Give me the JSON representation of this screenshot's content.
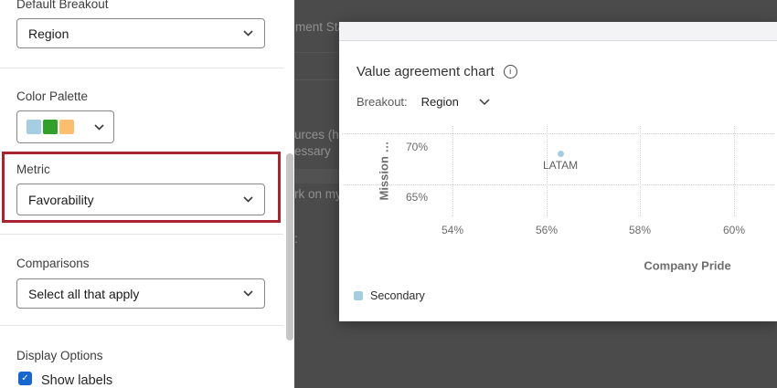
{
  "sidebar": {
    "default_breakout_label": "Default Breakout",
    "default_breakout_value": "Region",
    "color_palette_label": "Color Palette",
    "palette_colors": [
      "#a6cee3",
      "#33a02c",
      "#fdbf6f"
    ],
    "metric_label": "Metric",
    "metric_value": "Favorability",
    "metric_highlight_color": "#a92431",
    "comparisons_label": "Comparisons",
    "comparisons_value": "Select all that apply",
    "display_options_label": "Display Options",
    "show_labels_label": "Show labels",
    "show_labels_checked": true,
    "checkbox_color": "#1766cf",
    "check_glyph": "✓"
  },
  "backdrop": {
    "overlay_color": "#4b4b4b",
    "fragments": [
      "ment Sta",
      "urces (h",
      "essary",
      "rk on my",
      ":"
    ]
  },
  "modal": {
    "title": "Value agreement chart",
    "info_glyph": "i",
    "breakout_label": "Breakout:",
    "breakout_value": "Region"
  },
  "chart_data": {
    "type": "scatter",
    "title": "Value agreement chart",
    "xlabel": "Company Pride",
    "ylabel": "Mission …",
    "x_ticks": [
      "54%",
      "56%",
      "58%",
      "60%"
    ],
    "y_ticks": [
      "70%",
      "65%"
    ],
    "xlim": [
      53.5,
      60.9
    ],
    "ylim": [
      63,
      71
    ],
    "grid": "dotted",
    "legend_position": "bottom-left",
    "series": [
      {
        "name": "Secondary",
        "color": "#a6cee3",
        "points": [
          {
            "label": "LATAM",
            "x": 56.3,
            "y": 68
          }
        ]
      }
    ]
  }
}
